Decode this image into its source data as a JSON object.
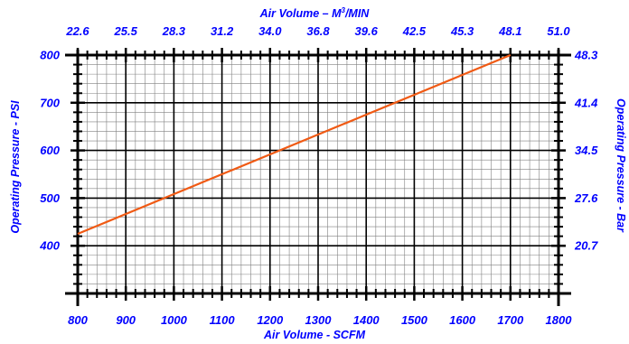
{
  "chart_data": {
    "type": "line",
    "title": "",
    "x_axis_bottom": {
      "label": "Air Volume - SCFM",
      "ticks": [
        800,
        900,
        1000,
        1100,
        1200,
        1300,
        1400,
        1500,
        1600,
        1700,
        1800
      ],
      "range": [
        800,
        1800
      ]
    },
    "x_axis_top": {
      "label_main": "Air Volume – M",
      "label_sup": "3",
      "label_tail": "/MIN",
      "ticks": [
        "22.6",
        "25.5",
        "28.3",
        "31.2",
        "34.0",
        "36.8",
        "39.6",
        "42.5",
        "45.3",
        "48.1",
        "51.0"
      ]
    },
    "y_axis_left": {
      "label": "Operating Pressure - PSI",
      "ticks": [
        400,
        500,
        600,
        700,
        800
      ],
      "range": [
        300,
        800
      ]
    },
    "y_axis_right": {
      "label": "Operating Pressure - Bar",
      "ticks": [
        "20.7",
        "27.6",
        "34.5",
        "41.4",
        "48.3"
      ]
    },
    "series": [
      {
        "x": [
          800,
          1700
        ],
        "y": [
          425,
          800
        ],
        "color": "#f05a14"
      }
    ],
    "grid": true,
    "colors": {
      "text": "#0000ff",
      "line": "#f05a14",
      "grid_major": "#000000",
      "grid_minor": "#808080"
    }
  }
}
